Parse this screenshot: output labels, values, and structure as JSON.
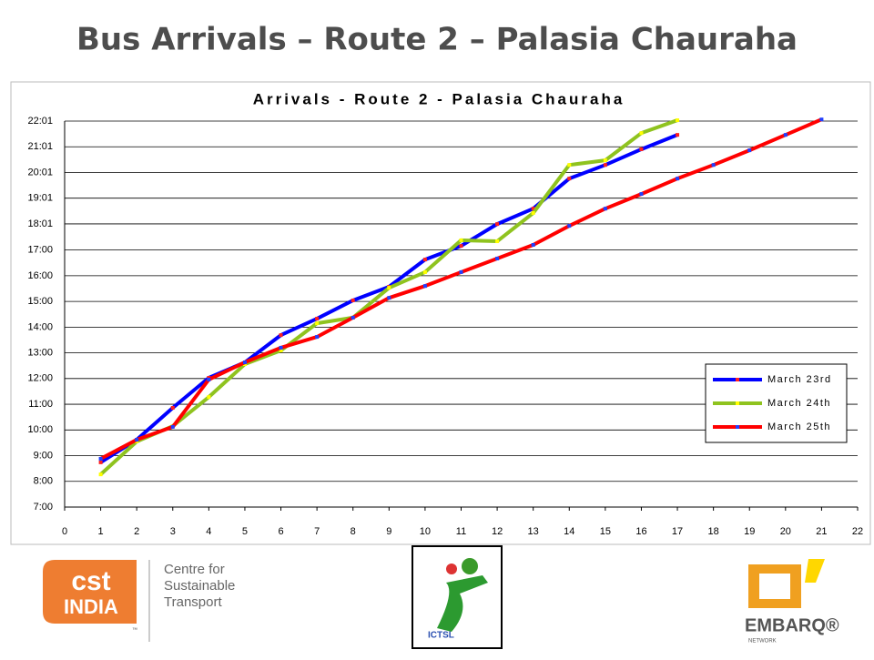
{
  "slide_title": "Bus Arrivals – Route 2 – Palasia Chauraha",
  "chart_data": {
    "type": "line",
    "title": "Arrivals - Route 2 - Palasia Chauraha",
    "xlim": [
      0,
      22
    ],
    "xticks": [
      0,
      1,
      2,
      3,
      4,
      5,
      6,
      7,
      8,
      9,
      10,
      11,
      12,
      13,
      14,
      15,
      16,
      17,
      18,
      19,
      20,
      21,
      22
    ],
    "ylim": [
      7,
      22.0167
    ],
    "yticks": [
      {
        "value": 7,
        "label": "7:00"
      },
      {
        "value": 8,
        "label": "8:00"
      },
      {
        "value": 9,
        "label": "9:00"
      },
      {
        "value": 10,
        "label": "10:00"
      },
      {
        "value": 11,
        "label": "11:00"
      },
      {
        "value": 12,
        "label": "12:00"
      },
      {
        "value": 13,
        "label": "13:00"
      },
      {
        "value": 14,
        "label": "14:00"
      },
      {
        "value": 15,
        "label": "15:00"
      },
      {
        "value": 16,
        "label": "16:00"
      },
      {
        "value": 17,
        "label": "17:00"
      },
      {
        "value": 18.0167,
        "label": "18:01"
      },
      {
        "value": 19.0167,
        "label": "19:01"
      },
      {
        "value": 20.0167,
        "label": "20:01"
      },
      {
        "value": 21.0167,
        "label": "21:01"
      },
      {
        "value": 22.0167,
        "label": "22:01"
      }
    ],
    "grid": true,
    "legend": "right",
    "series": [
      {
        "name": "March 23rd",
        "color": "#0000ff",
        "marker_color": "#ff2020",
        "x": [
          1,
          2,
          3,
          4,
          5,
          6,
          7,
          8,
          9,
          10,
          11,
          12,
          13,
          14,
          15,
          16,
          17
        ],
        "values": [
          8.74,
          9.62,
          10.86,
          12.03,
          12.63,
          13.69,
          14.33,
          15.04,
          15.57,
          16.63,
          17.16,
          18.01,
          18.61,
          19.78,
          20.31,
          20.92,
          21.48
        ]
      },
      {
        "name": "March 24th",
        "color": "#8fc31f",
        "marker_color": "#ffff00",
        "x": [
          1,
          2,
          3,
          4,
          5,
          6,
          7,
          8,
          9,
          10,
          11,
          12,
          13,
          14,
          15,
          16,
          17
        ],
        "values": [
          8.27,
          9.55,
          10.15,
          11.28,
          12.56,
          13.09,
          14.15,
          14.37,
          15.53,
          16.14,
          17.38,
          17.34,
          18.44,
          20.31,
          20.49,
          21.55,
          22.05
        ]
      },
      {
        "name": "March 25th",
        "color": "#ff0000",
        "marker_color": "#2040ff",
        "x": [
          1,
          2,
          3,
          4,
          5,
          6,
          7,
          8,
          9,
          10,
          11,
          12,
          13,
          14,
          15,
          16,
          17,
          18,
          19,
          20,
          21
        ],
        "values": [
          8.88,
          9.62,
          10.12,
          11.96,
          12.63,
          13.2,
          13.62,
          14.37,
          15.14,
          15.6,
          16.14,
          16.67,
          17.2,
          17.94,
          18.61,
          19.18,
          19.78,
          20.31,
          20.88,
          21.48,
          22.08
        ]
      }
    ]
  },
  "logos": {
    "cst": "cst",
    "india": "INDIA",
    "tm": "™",
    "cst_lines": [
      "Centre for",
      "Sustainable",
      "Transport"
    ],
    "ictsl": "ICTSL",
    "embarq": "EMBARQ®",
    "network": "NETWORK"
  }
}
